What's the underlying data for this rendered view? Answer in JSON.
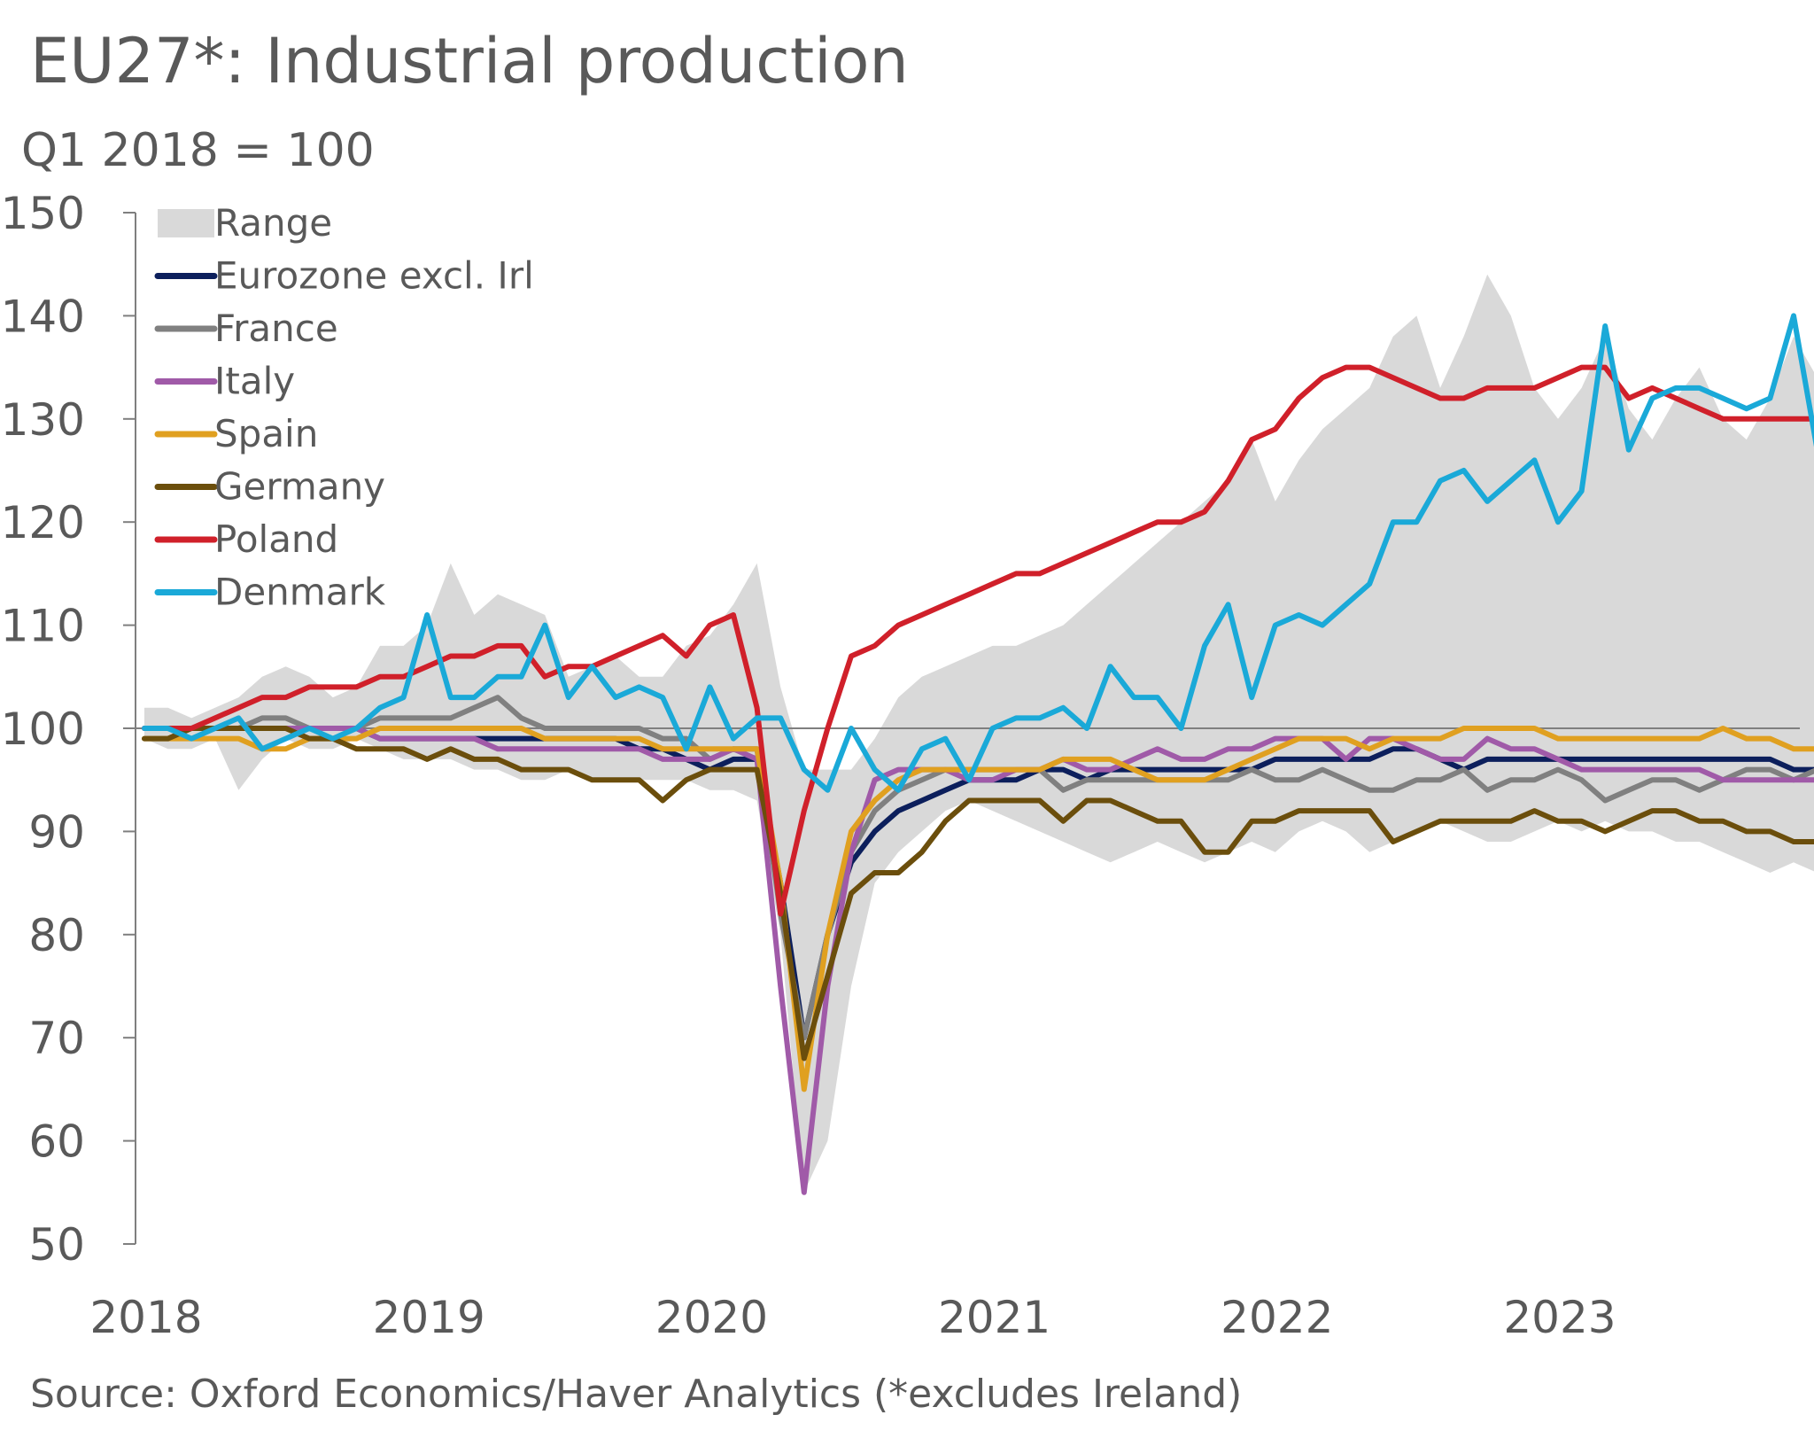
{
  "title": "EU27*: Industrial production",
  "subtitle": "Q1 2018 = 100",
  "source": "Source: Oxford Economics/Haver Analytics (*excludes Ireland)",
  "chart_data": {
    "type": "line",
    "x_start": "2018-01",
    "x_frequency": "monthly",
    "x_ticks": [
      "2018",
      "2019",
      "2020",
      "2021",
      "2022",
      "2023"
    ],
    "y_ticks": [
      50,
      60,
      70,
      80,
      90,
      100,
      110,
      120,
      130,
      140,
      150
    ],
    "ylim": [
      50,
      150
    ],
    "reference_line": 100,
    "legend_position": "top-left",
    "grid": false,
    "range": {
      "name": "Range",
      "color": "#d9d9d9",
      "upper": [
        102,
        102,
        101,
        102,
        103,
        105,
        106,
        105,
        103,
        104,
        108,
        108,
        110,
        116,
        111,
        113,
        112,
        111,
        105,
        106,
        107,
        105,
        105,
        108,
        109,
        112,
        116,
        104,
        96,
        96,
        96,
        99,
        103,
        105,
        106,
        107,
        108,
        108,
        109,
        110,
        112,
        114,
        116,
        118,
        120,
        122,
        124,
        128,
        122,
        126,
        129,
        131,
        133,
        138,
        140,
        133,
        138,
        144,
        140,
        133,
        130,
        133,
        138,
        131,
        128,
        132,
        135,
        130,
        128,
        132,
        138,
        134,
        133,
        133,
        131,
        140,
        128,
        128,
        130,
        130,
        140
      ],
      "lower": [
        99,
        98,
        98,
        99,
        94,
        97,
        99,
        98,
        98,
        99,
        98,
        97,
        97,
        97,
        96,
        96,
        95,
        95,
        96,
        95,
        95,
        95,
        95,
        95,
        94,
        94,
        93,
        80,
        55,
        60,
        75,
        85,
        88,
        90,
        92,
        93,
        92,
        91,
        90,
        89,
        88,
        87,
        88,
        89,
        88,
        87,
        88,
        89,
        88,
        90,
        91,
        90,
        88,
        89,
        90,
        91,
        90,
        89,
        89,
        90,
        91,
        90,
        91,
        90,
        90,
        89,
        89,
        88,
        87,
        86,
        87,
        86,
        86,
        86,
        86,
        85,
        86,
        87,
        85,
        86,
        87
      ]
    },
    "series": [
      {
        "name": "Eurozone excl. Irl",
        "color": "#0c1f5c",
        "values": [
          100,
          100,
          100,
          100,
          100,
          100,
          100,
          100,
          100,
          100,
          99,
          99,
          99,
          99,
          99,
          99,
          99,
          99,
          99,
          99,
          99,
          98,
          98,
          97,
          96,
          97,
          97,
          85,
          70,
          80,
          87,
          90,
          92,
          93,
          94,
          95,
          95,
          95,
          96,
          96,
          95,
          96,
          96,
          96,
          96,
          96,
          96,
          96,
          97,
          97,
          97,
          97,
          97,
          98,
          98,
          97,
          96,
          97,
          97,
          97,
          97,
          97,
          97,
          97,
          97,
          97,
          97,
          97,
          97,
          97,
          96,
          96,
          96,
          96,
          96,
          95,
          95,
          95,
          95,
          94,
          94
        ]
      },
      {
        "name": "France",
        "color": "#808080",
        "values": [
          100,
          100,
          100,
          100,
          100,
          101,
          101,
          100,
          100,
          100,
          101,
          101,
          101,
          101,
          102,
          103,
          101,
          100,
          100,
          100,
          100,
          100,
          99,
          99,
          97,
          98,
          98,
          82,
          70,
          80,
          88,
          92,
          94,
          95,
          96,
          96,
          96,
          96,
          96,
          94,
          95,
          95,
          95,
          95,
          95,
          95,
          95,
          96,
          95,
          95,
          96,
          95,
          94,
          94,
          95,
          95,
          96,
          94,
          95,
          95,
          96,
          95,
          93,
          94,
          95,
          95,
          94,
          95,
          96,
          96,
          95,
          96,
          96,
          96,
          95,
          95,
          95,
          96,
          95,
          96,
          96
        ]
      },
      {
        "name": "Italy",
        "color": "#a05aa8",
        "values": [
          100,
          100,
          100,
          100,
          100,
          100,
          100,
          100,
          100,
          100,
          99,
          99,
          99,
          99,
          99,
          98,
          98,
          98,
          98,
          98,
          98,
          98,
          97,
          97,
          97,
          98,
          97,
          75,
          55,
          75,
          88,
          95,
          96,
          96,
          96,
          95,
          95,
          96,
          96,
          97,
          96,
          96,
          97,
          98,
          97,
          97,
          98,
          98,
          99,
          99,
          99,
          97,
          99,
          99,
          98,
          97,
          97,
          99,
          98,
          98,
          97,
          96,
          96,
          96,
          96,
          96,
          96,
          95,
          95,
          95,
          95,
          95,
          95,
          95,
          95,
          95,
          95,
          95,
          95,
          95,
          94
        ]
      },
      {
        "name": "Spain",
        "color": "#e0a020",
        "values": [
          99,
          99,
          99,
          99,
          99,
          98,
          98,
          99,
          99,
          99,
          100,
          100,
          100,
          100,
          100,
          100,
          100,
          99,
          99,
          99,
          99,
          99,
          98,
          98,
          98,
          98,
          98,
          85,
          65,
          80,
          90,
          93,
          95,
          96,
          96,
          96,
          96,
          96,
          96,
          97,
          97,
          97,
          96,
          95,
          95,
          95,
          96,
          97,
          98,
          99,
          99,
          99,
          98,
          99,
          99,
          99,
          100,
          100,
          100,
          100,
          99,
          99,
          99,
          99,
          99,
          99,
          99,
          100,
          99,
          99,
          98,
          98,
          98,
          98,
          98,
          98,
          98,
          98,
          98,
          98,
          99
        ]
      },
      {
        "name": "Germany",
        "color": "#6b4e0c",
        "values": [
          99,
          99,
          100,
          100,
          100,
          100,
          100,
          99,
          99,
          98,
          98,
          98,
          97,
          98,
          97,
          97,
          96,
          96,
          96,
          95,
          95,
          95,
          93,
          95,
          96,
          96,
          96,
          84,
          68,
          76,
          84,
          86,
          86,
          88,
          91,
          93,
          93,
          93,
          93,
          91,
          93,
          93,
          92,
          91,
          91,
          88,
          88,
          91,
          91,
          92,
          92,
          92,
          92,
          89,
          90,
          91,
          91,
          91,
          91,
          92,
          91,
          91,
          90,
          91,
          92,
          92,
          91,
          91,
          90,
          90,
          89,
          89,
          89,
          88,
          88,
          88,
          88,
          88,
          87,
          87,
          87
        ]
      },
      {
        "name": "Poland",
        "color": "#d0202a",
        "values": [
          100,
          100,
          100,
          101,
          102,
          103,
          103,
          104,
          104,
          104,
          105,
          105,
          106,
          107,
          107,
          108,
          108,
          105,
          106,
          106,
          107,
          108,
          109,
          107,
          110,
          111,
          102,
          82,
          92,
          100,
          107,
          108,
          110,
          111,
          112,
          113,
          114,
          115,
          115,
          116,
          117,
          118,
          119,
          120,
          120,
          121,
          124,
          128,
          129,
          132,
          134,
          135,
          135,
          134,
          133,
          132,
          132,
          133,
          133,
          133,
          134,
          135,
          135,
          132,
          133,
          132,
          131,
          130,
          130,
          130,
          130,
          130,
          130,
          129,
          130,
          131,
          131,
          131,
          131,
          131,
          130
        ]
      },
      {
        "name": "Denmark",
        "color": "#1aa9d8",
        "values": [
          100,
          100,
          99,
          100,
          101,
          98,
          99,
          100,
          99,
          100,
          102,
          103,
          111,
          103,
          103,
          105,
          105,
          110,
          103,
          106,
          103,
          104,
          103,
          98,
          104,
          99,
          101,
          101,
          96,
          94,
          100,
          96,
          94,
          98,
          99,
          95,
          100,
          101,
          101,
          102,
          100,
          106,
          103,
          103,
          100,
          108,
          112,
          103,
          110,
          111,
          110,
          112,
          114,
          120,
          120,
          124,
          125,
          122,
          124,
          126,
          120,
          123,
          139,
          127,
          132,
          133,
          133,
          132,
          131,
          132,
          140,
          127,
          129,
          128,
          129,
          130,
          141
        ]
      }
    ]
  }
}
